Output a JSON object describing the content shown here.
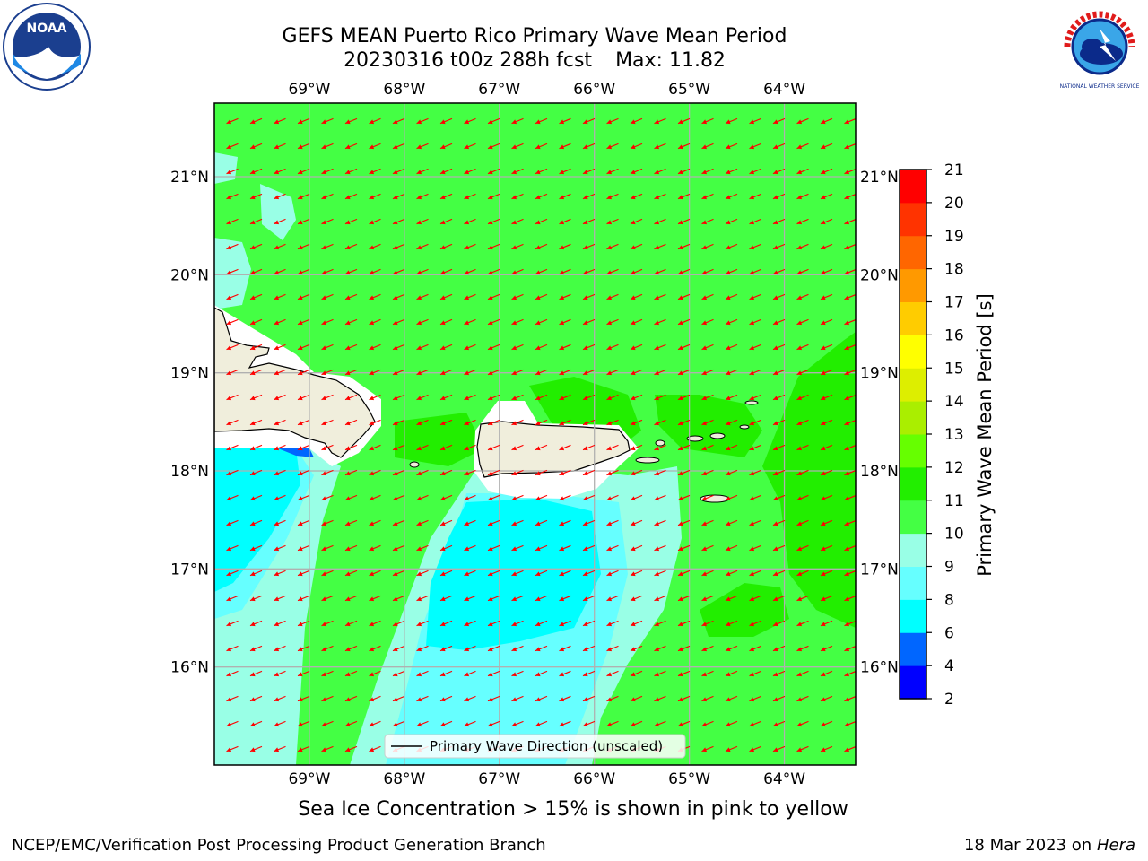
{
  "title_line1": "GEFS MEAN Puerto Rico Primary Wave Mean Period",
  "title_date": "20230316 t00z 288h fcst",
  "title_max": "Max: 11.82",
  "lon_ticks": [
    {
      "lon": -69,
      "label": "69°W"
    },
    {
      "lon": -68,
      "label": "68°W"
    },
    {
      "lon": -67,
      "label": "67°W"
    },
    {
      "lon": -66,
      "label": "66°W"
    },
    {
      "lon": -65,
      "label": "65°W"
    },
    {
      "lon": -64,
      "label": "64°W"
    }
  ],
  "lat_ticks": [
    {
      "lat": 21,
      "label": "21°N"
    },
    {
      "lat": 20,
      "label": "20°N"
    },
    {
      "lat": 19,
      "label": "19°N"
    },
    {
      "lat": 18,
      "label": "18°N"
    },
    {
      "lat": 17,
      "label": "17°N"
    },
    {
      "lat": 16,
      "label": "16°N"
    }
  ],
  "map_extent": {
    "lon_min": -70.0,
    "lon_max": -63.25,
    "lat_min": 15.0,
    "lat_max": 21.75
  },
  "legend_label": "Primary Wave Direction (unscaled)",
  "colorbar": {
    "title": "Primary Wave Mean Period [s]",
    "ticks": [
      "2",
      "4",
      "6",
      "8",
      "9",
      "10",
      "11",
      "12",
      "13",
      "14",
      "15",
      "16",
      "17",
      "18",
      "19",
      "20",
      "21"
    ],
    "colors": [
      "#0000ff",
      "#0066ff",
      "#00ffff",
      "#66ffff",
      "#99ffe6",
      "#44ff44",
      "#22ee00",
      "#66ff00",
      "#aaee00",
      "#ddee00",
      "#ffff00",
      "#ffcc00",
      "#ff9900",
      "#ff6600",
      "#ff3300",
      "#ff0000"
    ]
  },
  "colors": {
    "land": "#f0eedc",
    "arrow": "#ff0000",
    "grid": "#b0b0b0",
    "coast": "#000000"
  },
  "note": "Sea Ice Concentration > 15% is shown in pink to yellow",
  "footer_left": "NCEP/EMC/Verification Post Processing Product Generation Branch",
  "footer_date": "18 Mar 2023 on",
  "footer_machine": "Hera",
  "logos": {
    "left": "NOAA",
    "right": "NATIONAL WEATHER SERVICE"
  }
}
